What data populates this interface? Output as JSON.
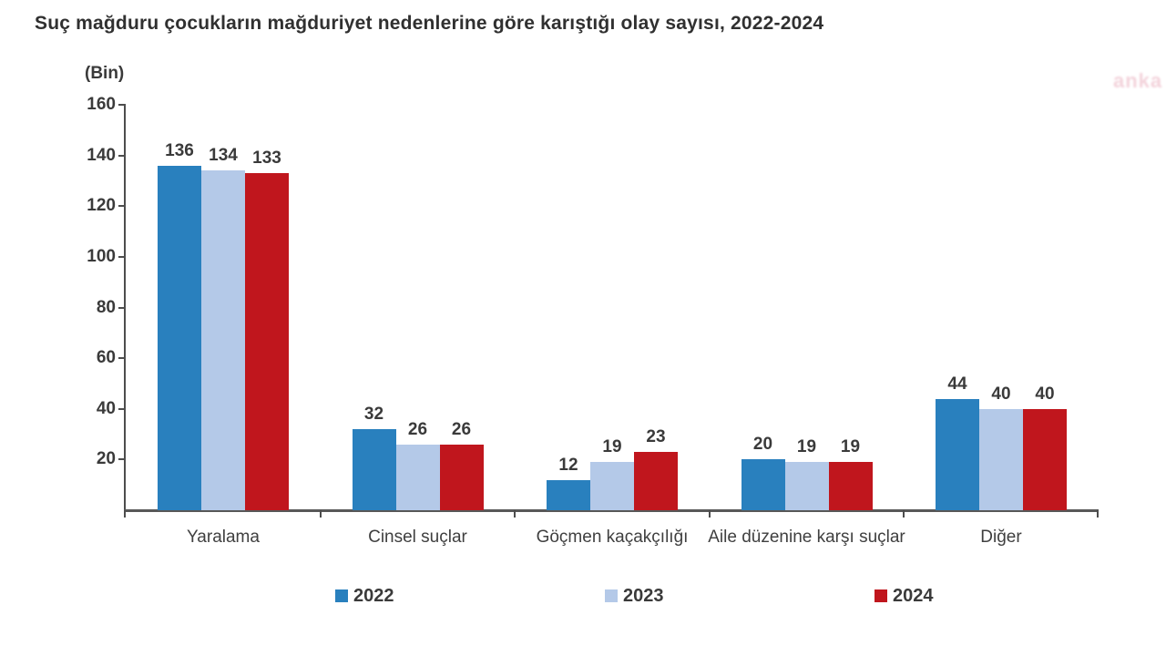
{
  "title": "Suç mağduru çocukların mağduriyet nedenlerine göre karıştığı olay sayısı, 2022-2024",
  "watermark": "anka",
  "chart_data": {
    "type": "bar",
    "title": "Suç mağduru çocukların mağduriyet nedenlerine göre karıştığı olay sayısı, 2022-2024",
    "unit_label": "(Bin)",
    "xlabel": "",
    "ylabel": "(Bin)",
    "ylim": [
      0,
      160
    ],
    "yticks": [
      20,
      40,
      60,
      80,
      100,
      120,
      140,
      160
    ],
    "grid": false,
    "legend_position": "bottom",
    "value_labels": true,
    "categories": [
      "Yaralama",
      "Cinsel suçlar",
      "Göçmen kaçakçılığı",
      "Aile düzenine karşı suçlar",
      "Diğer"
    ],
    "series": [
      {
        "name": "2022",
        "color": "#2980be",
        "values": [
          136,
          32,
          12,
          20,
          44
        ]
      },
      {
        "name": "2023",
        "color": "#b4c9e8",
        "values": [
          134,
          26,
          19,
          19,
          40
        ]
      },
      {
        "name": "2024",
        "color": "#c0161d",
        "values": [
          133,
          26,
          23,
          19,
          40
        ]
      }
    ]
  }
}
